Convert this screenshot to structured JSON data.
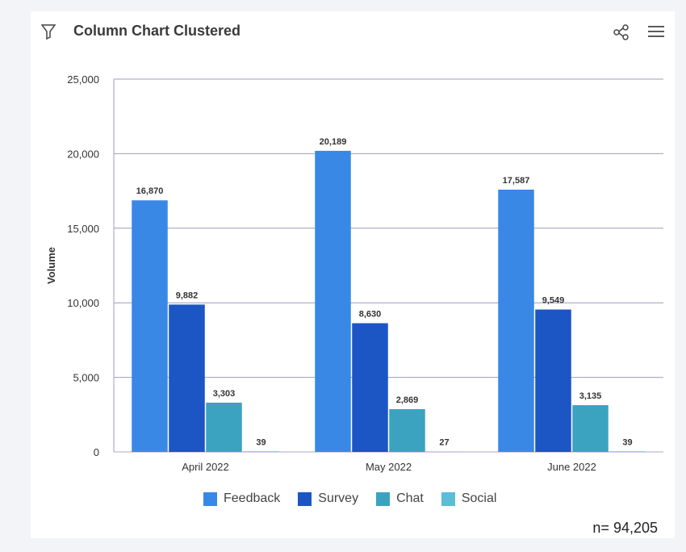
{
  "header": {
    "title": "Column Chart Clustered"
  },
  "icons": {
    "filter": "filter-icon",
    "share": "share-icon",
    "menu": "hamburger-menu-icon"
  },
  "footer": {
    "n_label": "n= 94,205"
  },
  "chart_data": {
    "type": "bar",
    "title": "Column Chart Clustered",
    "ylabel": "Volume",
    "xlabel": "",
    "ylim": [
      0,
      25000
    ],
    "yticks": [
      0,
      5000,
      10000,
      15000,
      20000,
      25000
    ],
    "ytick_labels": [
      "0",
      "5,000",
      "10,000",
      "15,000",
      "20,000",
      "25,000"
    ],
    "categories": [
      "April 2022",
      "May 2022",
      "June 2022"
    ],
    "grid": true,
    "legend": "bottom",
    "series": [
      {
        "name": "Feedback",
        "color": "#3a88e6",
        "values": [
          16870,
          20189,
          17587
        ]
      },
      {
        "name": "Survey",
        "color": "#1c55c4",
        "values": [
          9882,
          8630,
          9549
        ]
      },
      {
        "name": "Chat",
        "color": "#3ba3bf",
        "values": [
          3303,
          2869,
          3135
        ]
      },
      {
        "name": "Social",
        "color": "#5bbdd6",
        "values": [
          39,
          27,
          39
        ]
      }
    ]
  }
}
